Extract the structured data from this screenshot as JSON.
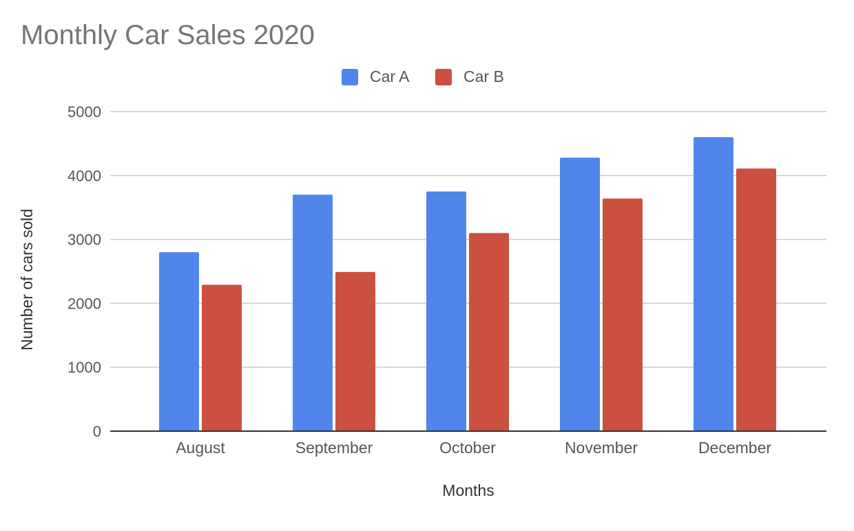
{
  "chart_data": {
    "type": "bar",
    "title": "Monthly Car Sales 2020",
    "xlabel": "Months",
    "ylabel": "Number of cars sold",
    "categories": [
      "August",
      "September",
      "October",
      "November",
      "December"
    ],
    "series": [
      {
        "name": "Car A",
        "color": "#5086ec",
        "values": [
          2800,
          3700,
          3750,
          4280,
          4600
        ]
      },
      {
        "name": "Car B",
        "color": "#cb5040",
        "values": [
          2290,
          2490,
          3100,
          3640,
          4110
        ]
      }
    ],
    "ylim": [
      0,
      5000
    ],
    "yticks": [
      0,
      1000,
      2000,
      3000,
      4000,
      5000
    ],
    "grid": true,
    "legend_position": "top-center"
  }
}
